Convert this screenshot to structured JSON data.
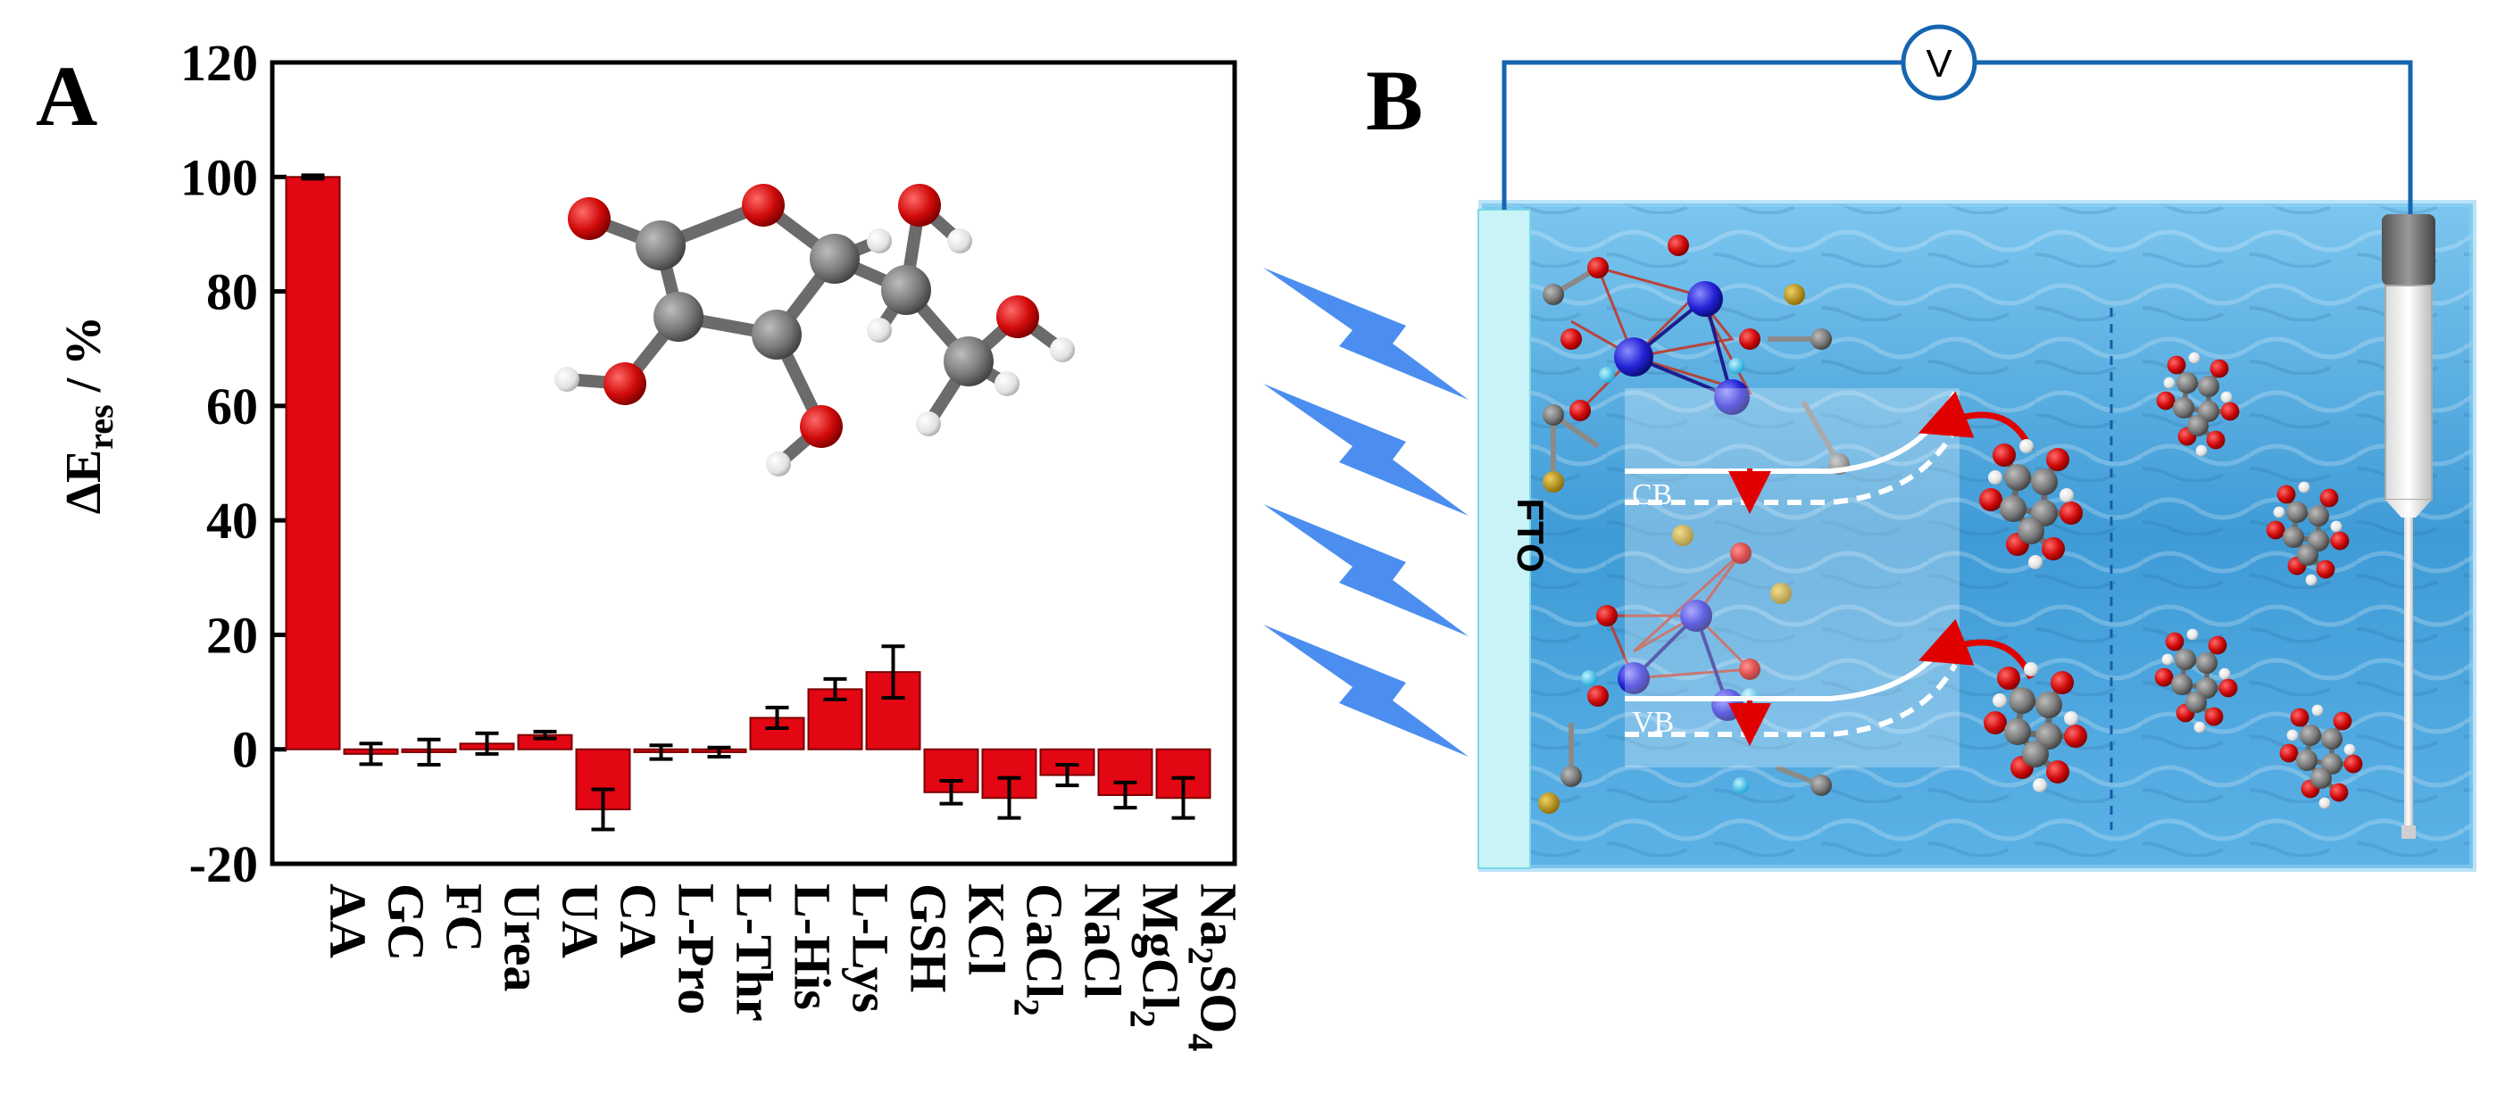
{
  "panel_a": {
    "label": "A",
    "chart_data": {
      "type": "bar",
      "ylabel_main": "ΔE",
      "ylabel_sub": "res",
      "ylabel_unit": " / %",
      "ylim": [
        -20,
        120
      ],
      "yticks": [
        -20,
        0,
        20,
        40,
        60,
        80,
        100,
        120
      ],
      "categories": [
        {
          "base": "AA",
          "sub": ""
        },
        {
          "base": "GC",
          "sub": ""
        },
        {
          "base": "FC",
          "sub": ""
        },
        {
          "base": "Urea",
          "sub": ""
        },
        {
          "base": "UA",
          "sub": ""
        },
        {
          "base": "CA",
          "sub": ""
        },
        {
          "base": "L-Pro",
          "sub": ""
        },
        {
          "base": "L-Thr",
          "sub": ""
        },
        {
          "base": "L-His",
          "sub": ""
        },
        {
          "base": "L-Lys",
          "sub": ""
        },
        {
          "base": "GSH",
          "sub": ""
        },
        {
          "base": "KCl",
          "sub": ""
        },
        {
          "base": "CaCl",
          "sub": "2"
        },
        {
          "base": "NaCl",
          "sub": ""
        },
        {
          "base": "MgCl",
          "sub": "2"
        },
        {
          "base": "Na",
          "sub": "2",
          "base2": "SO",
          "sub2": "4"
        }
      ],
      "values": [
        100,
        -0.8,
        -0.5,
        1.0,
        2.5,
        -10.5,
        -0.5,
        -0.5,
        5.5,
        10.5,
        13.5,
        -7.5,
        -8.5,
        -4.5,
        -8.0,
        -8.5
      ],
      "errors": [
        0.3,
        1.8,
        2.2,
        1.8,
        0.6,
        3.5,
        1.2,
        0.8,
        1.8,
        1.8,
        4.5,
        2.0,
        3.5,
        1.8,
        2.2,
        3.5
      ],
      "bar_color": "#e30613"
    }
  },
  "panel_b": {
    "label": "B",
    "electrode_label": "FTO",
    "voltmeter_label": "V",
    "cb_label": "CB",
    "vb_label": "VB",
    "colors": {
      "water": "#4fa9dd",
      "fto": "#c9f3f6",
      "wire": "#1565b0",
      "lightning": "#4b8ef0"
    }
  }
}
